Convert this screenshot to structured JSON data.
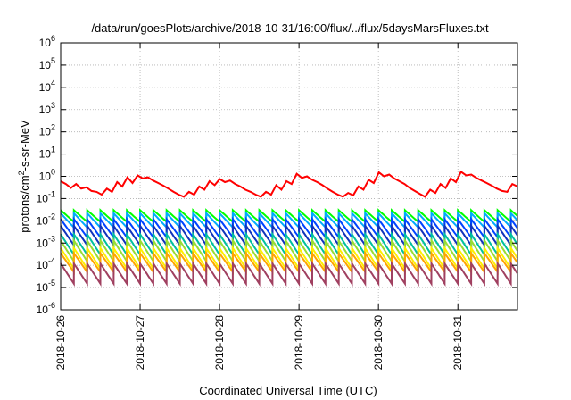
{
  "chart_data": {
    "type": "line",
    "title": "/data/run/goesPlots/archive/2018-10-31/16:00/flux/../flux/5daysMarsFluxes.txt",
    "xlabel": "Coordinated Universal Time (UTC)",
    "ylabel": "protons/cm2-s-sr-MeV",
    "ylabel_parts": {
      "base": "protons/cm",
      "exp": "2",
      "rest": "-s-sr-MeV"
    },
    "x_type": "date",
    "xlim": [
      "2018-10-26",
      "2018-10-31T18:00"
    ],
    "x_ticks": [
      "2018-10-26",
      "2018-10-27",
      "2018-10-28",
      "2018-10-29",
      "2018-10-30",
      "2018-10-31"
    ],
    "y_scale": "log",
    "ylim": [
      1e-06,
      1000000.0
    ],
    "y_tick_exponents": [
      -6,
      -5,
      -4,
      -3,
      -2,
      -1,
      0,
      1,
      2,
      3,
      4,
      5,
      6
    ],
    "y_tick_base": "10",
    "grid": true,
    "legend": "none",
    "series": [
      {
        "color": "#ff0000",
        "peaks_per_day": 6,
        "values": [
          0.6,
          0.45,
          0.3,
          0.45,
          0.28,
          0.32,
          0.22,
          0.2,
          0.15,
          0.28,
          0.2,
          0.55,
          0.35,
          0.9,
          0.5,
          1.1,
          0.8,
          0.9,
          0.65,
          0.5,
          0.38,
          0.28,
          0.2,
          0.15,
          0.12,
          0.2,
          0.15,
          0.35,
          0.25,
          0.6,
          0.4,
          0.75,
          0.55,
          0.65,
          0.45,
          0.35,
          0.25,
          0.2,
          0.15,
          0.12,
          0.2,
          0.15,
          0.4,
          0.25,
          0.6,
          0.45,
          1.3,
          0.85,
          1.0,
          0.7,
          0.55,
          0.4,
          0.28,
          0.2,
          0.15,
          0.12,
          0.18,
          0.14,
          0.35,
          0.25,
          0.7,
          0.5,
          1.5,
          1.0,
          1.2,
          0.8,
          0.6,
          0.45,
          0.3,
          0.22,
          0.16,
          0.12,
          0.25,
          0.18,
          0.45,
          0.3,
          0.8,
          0.55,
          1.6,
          1.1,
          1.2,
          0.85,
          0.65,
          0.5,
          0.38,
          0.28,
          0.22,
          0.2,
          0.45,
          0.35
        ],
        "step_values": null
      },
      {
        "color": "#00ff00",
        "peaks_per_day": 6,
        "peak": 0.03,
        "trough": 0.009
      },
      {
        "color": "#00aaff",
        "peaks_per_day": 6,
        "peak": 0.022,
        "trough": 0.005
      },
      {
        "color": "#0044ff",
        "peaks_per_day": 6,
        "peak": 0.012,
        "trough": 0.0018
      },
      {
        "color": "#1133bb",
        "peaks_per_day": 6,
        "peak": 0.006,
        "trough": 0.0008
      },
      {
        "color": "#00c0a0",
        "peaks_per_day": 6,
        "peak": 0.0025,
        "trough": 0.0003
      },
      {
        "color": "#99dd33",
        "peaks_per_day": 6,
        "peak": 0.0013,
        "trough": 0.00015
      },
      {
        "color": "#ffee00",
        "peaks_per_day": 6,
        "peak": 0.0006,
        "trough": 7e-05
      },
      {
        "color": "#ffa500",
        "peaks_per_day": 6,
        "peak": 0.00035,
        "trough": 5e-05
      },
      {
        "color": "#a04060",
        "peaks_per_day": 6,
        "peak": 0.00012,
        "trough": 1.5e-05
      }
    ]
  }
}
